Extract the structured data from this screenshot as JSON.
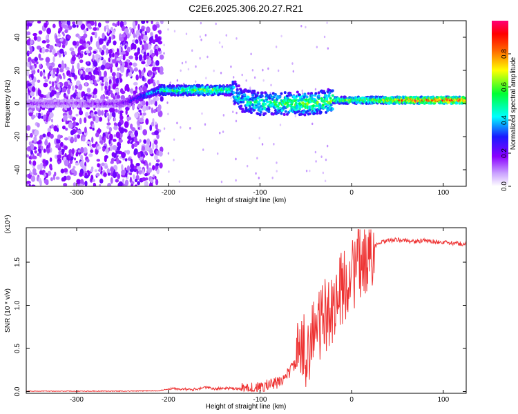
{
  "figure": {
    "title": "C2E6.2025.306.20.27.R21"
  },
  "chart_data": [
    {
      "type": "heatmap",
      "name": "spectrogram",
      "xlabel": "Height of straight line (km)",
      "ylabel": "Frequency (Hz)",
      "xlim": [
        -355,
        125
      ],
      "ylim": [
        -50,
        50
      ],
      "x_ticks": [
        -300,
        -200,
        -100,
        0,
        100
      ],
      "x_tick_labels": [
        "-300",
        "-200",
        "-100",
        "0",
        "100"
      ],
      "y_ticks": [
        -40,
        -20,
        0,
        20,
        40
      ],
      "y_tick_labels": [
        "-40",
        "-20",
        "0",
        "20",
        "40"
      ],
      "colorbar": {
        "label": "Normalized spectral amplitude",
        "range": [
          0,
          1
        ],
        "ticks": [
          0.0,
          0.2,
          0.4,
          0.6,
          0.8
        ],
        "tick_labels": [
          "0.0",
          "0.2",
          "0.4",
          "0.6",
          "0.8"
        ],
        "colors": [
          "#ffffff",
          "#8a00ff",
          "#1a1aff",
          "#00ffff",
          "#00ff33",
          "#ffff00",
          "#ff6600",
          "#ff0000",
          "#ff0077"
        ]
      },
      "ridge": {
        "x": [
          -355,
          -300,
          -250,
          -210,
          -190,
          -170,
          -150,
          -130,
          -120,
          -100,
          -80,
          -60,
          -40,
          -20,
          0,
          20,
          50,
          80,
          110,
          125
        ],
        "freq": [
          0,
          0,
          0,
          8,
          8,
          8,
          8,
          8,
          2,
          0,
          0,
          0,
          0,
          2,
          2,
          2,
          2,
          2,
          2,
          2
        ],
        "amplitude": [
          0.15,
          0.15,
          0.2,
          0.5,
          0.55,
          0.6,
          0.6,
          0.5,
          0.45,
          0.55,
          0.55,
          0.6,
          0.6,
          0.6,
          0.65,
          0.7,
          0.85,
          0.9,
          0.95,
          0.95
        ]
      }
    },
    {
      "type": "line",
      "name": "snr",
      "xlabel": "Height of straight line (km)",
      "ylabel": "SNR (10 * v/v)",
      "y_scale_label": "(x10⁴)",
      "xlim": [
        -355,
        125
      ],
      "ylim": [
        -0.02,
        1.9
      ],
      "x_ticks": [
        -300,
        -200,
        -100,
        0,
        100
      ],
      "x_tick_labels": [
        "-300",
        "-200",
        "-100",
        "0",
        "100"
      ],
      "y_ticks": [
        0.0,
        0.5,
        1.0,
        1.5
      ],
      "y_tick_labels": [
        "0.0",
        "0.5",
        "1.0",
        "1.5"
      ],
      "line_color": "#ee3333",
      "x": [
        -355,
        -300,
        -250,
        -210,
        -195,
        -175,
        -160,
        -150,
        -140,
        -120,
        -100,
        -90,
        -80,
        -70,
        -60,
        -50,
        -40,
        -30,
        -20,
        -15,
        -10,
        -5,
        0,
        10,
        20,
        25,
        30,
        40,
        50,
        60,
        70,
        80,
        90,
        100,
        110,
        125
      ],
      "y": [
        0.005,
        0.005,
        0.005,
        0.01,
        0.04,
        0.02,
        0.05,
        0.03,
        0.04,
        0.03,
        0.04,
        0.08,
        0.1,
        0.2,
        0.35,
        0.5,
        0.7,
        0.85,
        1.0,
        1.1,
        1.2,
        1.3,
        1.35,
        1.5,
        1.62,
        1.68,
        1.72,
        1.75,
        1.76,
        1.75,
        1.74,
        1.75,
        1.74,
        1.73,
        1.72,
        1.71
      ]
    }
  ]
}
